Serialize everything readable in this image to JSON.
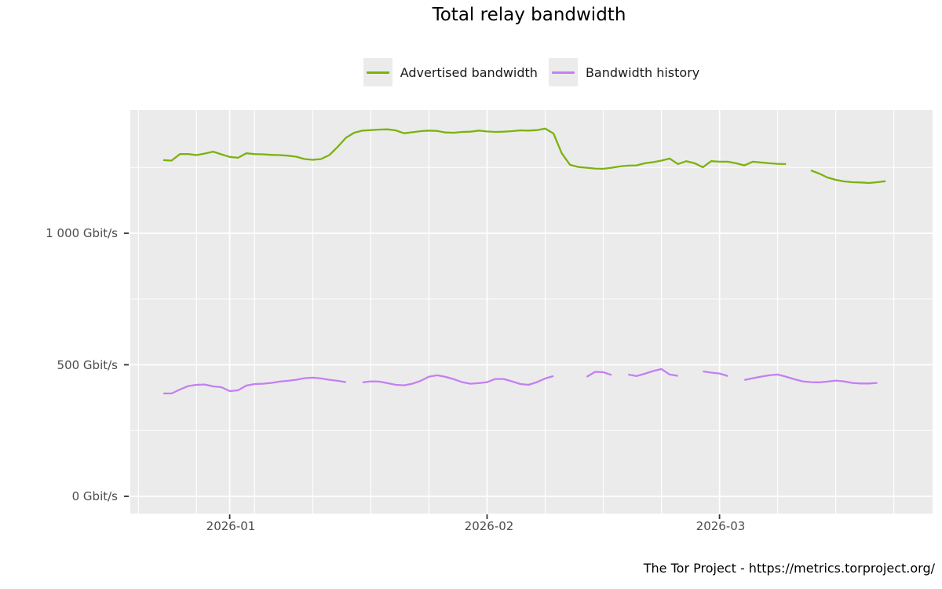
{
  "page": {
    "title": "Total relay bandwidth",
    "footer": "The Tor Project - https://metrics.torproject.org/"
  },
  "legend": {
    "items": [
      {
        "label": "Advertised bandwidth",
        "color": "#7CB20E"
      },
      {
        "label": "Bandwidth history",
        "color": "#C47FF2"
      }
    ]
  },
  "axes": {
    "y": {
      "unit": "Gbit/s",
      "ticks": [
        {
          "label": "1 000 Gbit/s",
          "value": 1000
        },
        {
          "label": "500 Gbit/s",
          "value": 500
        },
        {
          "label": "0 Gbit/s",
          "value": 0
        }
      ]
    },
    "x": {
      "ticks": [
        {
          "label": "2026-01",
          "date": "2026-01-01"
        },
        {
          "label": "2026-02",
          "date": "2026-02-01"
        },
        {
          "label": "2026-03",
          "date": "2026-03-01"
        }
      ]
    }
  },
  "colors": {
    "panel_background": "#EBEBEB",
    "gridline": "#FFFFFF",
    "tick_mark": "#333333",
    "axis_label": "#4D4D4D",
    "advertised_bandwidth": "#7CB20E",
    "bandwidth_history": "#C47FF2"
  },
  "chart_data": {
    "type": "line",
    "title": "Total relay bandwidth",
    "xlabel": "",
    "ylabel": "",
    "y_unit": "Gbit/s",
    "ylim": [
      -70,
      1470
    ],
    "y_ticks": [
      0,
      500,
      1000
    ],
    "y_minor_ticks": [
      250,
      750,
      1250
    ],
    "x_major": [
      "2026-01-01",
      "2026-02-01",
      "2026-03-01"
    ],
    "x_minor": "weekly (Sundays), 2025-12-21 through 2026-03-22",
    "grid": true,
    "legend_position": "top",
    "note": "nulls are gaps (missing days) visible in the plotted lines",
    "x": [
      "2025-12-24",
      "2025-12-25",
      "2025-12-26",
      "2025-12-27",
      "2025-12-28",
      "2025-12-29",
      "2025-12-30",
      "2025-12-31",
      "2026-01-01",
      "2026-01-02",
      "2026-01-03",
      "2026-01-04",
      "2026-01-05",
      "2026-01-06",
      "2026-01-07",
      "2026-01-08",
      "2026-01-09",
      "2026-01-10",
      "2026-01-11",
      "2026-01-12",
      "2026-01-13",
      "2026-01-14",
      "2026-01-15",
      "2026-01-16",
      "2026-01-17",
      "2026-01-18",
      "2026-01-19",
      "2026-01-20",
      "2026-01-21",
      "2026-01-22",
      "2026-01-23",
      "2026-01-24",
      "2026-01-25",
      "2026-01-26",
      "2026-01-27",
      "2026-01-28",
      "2026-01-29",
      "2026-01-30",
      "2026-01-31",
      "2026-02-01",
      "2026-02-02",
      "2026-02-03",
      "2026-02-04",
      "2026-02-05",
      "2026-02-06",
      "2026-02-07",
      "2026-02-08",
      "2026-02-09",
      "2026-02-10",
      "2026-02-11",
      "2026-02-12",
      "2026-02-13",
      "2026-02-14",
      "2026-02-15",
      "2026-02-16",
      "2026-02-17",
      "2026-02-18",
      "2026-02-19",
      "2026-02-20",
      "2026-02-21",
      "2026-02-22",
      "2026-02-23",
      "2026-02-24",
      "2026-02-25",
      "2026-02-26",
      "2026-02-27",
      "2026-02-28",
      "2026-03-01",
      "2026-03-02",
      "2026-03-03",
      "2026-03-04",
      "2026-03-05",
      "2026-03-06",
      "2026-03-07",
      "2026-03-08",
      "2026-03-09",
      "2026-03-10",
      "2026-03-11",
      "2026-03-12",
      "2026-03-13",
      "2026-03-14",
      "2026-03-15",
      "2026-03-16",
      "2026-03-17",
      "2026-03-18",
      "2026-03-19",
      "2026-03-20",
      "2026-03-21"
    ],
    "series": [
      {
        "name": "Advertised bandwidth",
        "color": "#7CB20E",
        "values": [
          1278,
          1276,
          1301,
          1301,
          1297,
          1303,
          1310,
          1300,
          1290,
          1287,
          1304,
          1301,
          1300,
          1298,
          1297,
          1295,
          1291,
          1282,
          1279,
          1282,
          1297,
          1328,
          1363,
          1382,
          1390,
          1392,
          1394,
          1395,
          1391,
          1380,
          1384,
          1388,
          1390,
          1389,
          1383,
          1382,
          1385,
          1386,
          1390,
          1387,
          1385,
          1386,
          1388,
          1391,
          1390,
          1392,
          1398,
          1379,
          1304,
          1260,
          1252,
          1249,
          1246,
          1245,
          1249,
          1254,
          1257,
          1258,
          1266,
          1270,
          1276,
          1284,
          1263,
          1274,
          1266,
          1251,
          1274,
          1272,
          1272,
          1266,
          1258,
          1272,
          1269,
          1266,
          1264,
          1263,
          null,
          null,
          1239,
          1227,
          1212,
          1203,
          1197,
          1194,
          1193,
          1191,
          1194,
          1198
        ]
      },
      {
        "name": "Bandwidth history",
        "color": "#C47FF2",
        "values": [
          391,
          391,
          406,
          419,
          424,
          425,
          418,
          415,
          400,
          403,
          421,
          427,
          428,
          431,
          436,
          439,
          443,
          449,
          451,
          448,
          443,
          439,
          434,
          null,
          433,
          437,
          436,
          430,
          424,
          422,
          428,
          439,
          455,
          460,
          454,
          445,
          434,
          428,
          430,
          434,
          446,
          446,
          437,
          427,
          424,
          434,
          448,
          457,
          null,
          null,
          null,
          454,
          473,
          472,
          461,
          null,
          463,
          457,
          466,
          476,
          484,
          463,
          458,
          null,
          null,
          475,
          470,
          467,
          457,
          null,
          442,
          449,
          455,
          460,
          463,
          455,
          445,
          437,
          434,
          433,
          436,
          440,
          437,
          431,
          429,
          429,
          431,
          null
        ]
      }
    ]
  }
}
